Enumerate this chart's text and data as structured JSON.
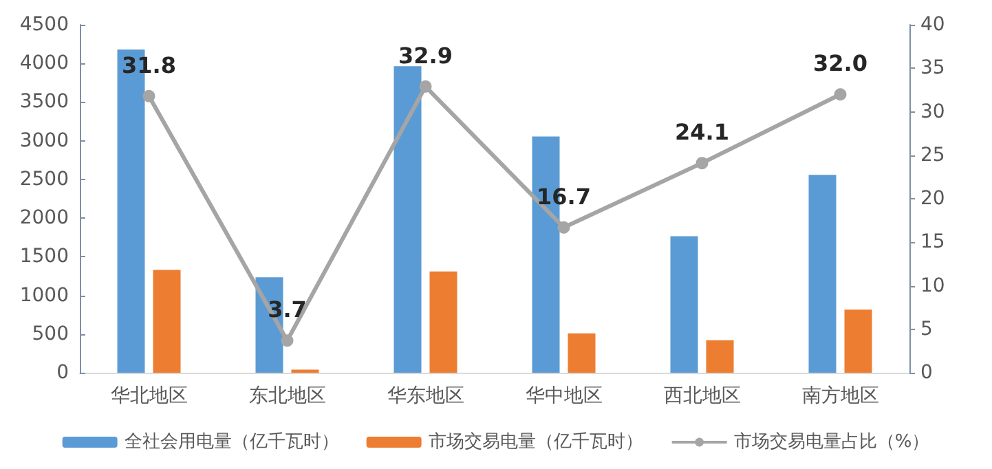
{
  "chart_data": {
    "type": "bar",
    "categories": [
      "华北地区",
      "东北地区",
      "华东地区",
      "华中地区",
      "西北地区",
      "南方地区"
    ],
    "series": [
      {
        "name": "全社会用电量（亿千瓦时）",
        "color": "#5b9bd5",
        "values": [
          4180,
          1235,
          3965,
          3055,
          1765,
          2560
        ]
      },
      {
        "name": "市场交易电量（亿千瓦时）",
        "color": "#ed7d31",
        "values": [
          1330,
          40,
          1310,
          510,
          420,
          815
        ]
      },
      {
        "name": "市场交易电量占比（%）",
        "type": "line",
        "axis": "y2",
        "color": "#a5a5a5",
        "marker": "circle",
        "values": [
          31.8,
          3.7,
          32.9,
          16.7,
          24.1,
          32.0
        ],
        "value_labels": [
          "31.8",
          "3.7",
          "32.9",
          "16.7",
          "24.1",
          "32.0"
        ]
      }
    ],
    "ylim": [
      0,
      4500
    ],
    "yticks": [
      0,
      500,
      1000,
      1500,
      2000,
      2500,
      3000,
      3500,
      4000,
      4500
    ],
    "y2lim": [
      0,
      40
    ],
    "y2ticks": [
      0,
      5,
      10,
      15,
      20,
      25,
      30,
      35,
      40
    ],
    "grid": false,
    "legend": "bottom"
  }
}
